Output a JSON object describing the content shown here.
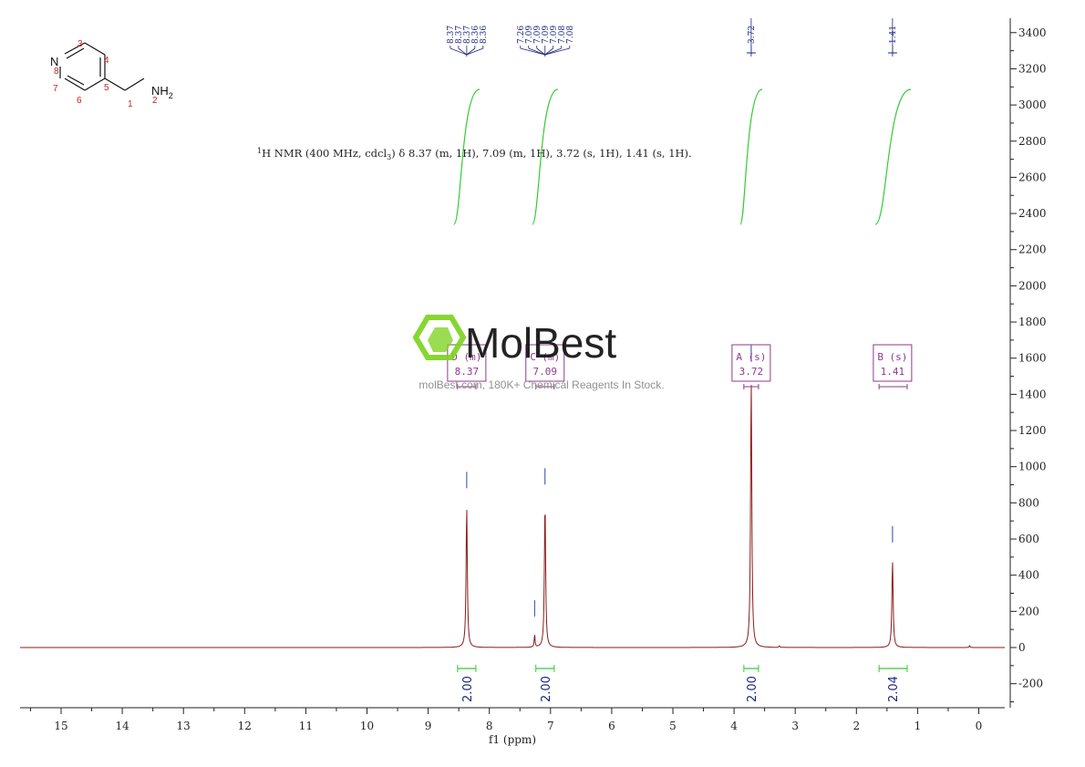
{
  "chart_data": {
    "type": "line",
    "xlabel": "f1 (ppm)",
    "ylabel": "",
    "xlim": [
      15.7,
      -0.5
    ],
    "ylim": [
      -340,
      3480
    ],
    "x_ticks": [
      15,
      14,
      13,
      12,
      11,
      10,
      9,
      8,
      7,
      6,
      5,
      4,
      3,
      2,
      1,
      0
    ],
    "y_ticks": [
      3400,
      3200,
      3000,
      2800,
      2600,
      2400,
      2200,
      2000,
      1800,
      1600,
      1400,
      1200,
      1000,
      800,
      600,
      400,
      200,
      0,
      -200
    ],
    "peaks": [
      {
        "x": 8.37,
        "y": 780
      },
      {
        "x": 7.26,
        "y": 70
      },
      {
        "x": 7.09,
        "y": 800
      },
      {
        "x": 3.72,
        "y": 1480
      },
      {
        "x": 3.26,
        "y": 10
      },
      {
        "x": 1.41,
        "y": 480
      },
      {
        "x": 0.15,
        "y": 10
      }
    ],
    "peak_labels": [
      {
        "group_x": 8.37,
        "labels": [
          "8.37",
          "8.37",
          "8.37",
          "8.36",
          "8.36"
        ]
      },
      {
        "group_x": 7.09,
        "labels": [
          "7.26",
          "7.09",
          "7.09",
          "7.09",
          "7.09",
          "7.08",
          "7.08"
        ]
      },
      {
        "group_x": 3.72,
        "labels": [
          "3.72"
        ]
      },
      {
        "group_x": 1.41,
        "labels": [
          "1.41"
        ]
      }
    ],
    "integrations": [
      {
        "x": 8.37,
        "from": 8.52,
        "to": 8.22,
        "value": "2.00"
      },
      {
        "x": 7.09,
        "from": 7.24,
        "to": 6.94,
        "value": "2.00"
      },
      {
        "x": 3.72,
        "from": 3.84,
        "to": 3.6,
        "value": "2.00"
      },
      {
        "x": 1.41,
        "from": 1.63,
        "to": 1.17,
        "value": "2.04"
      }
    ],
    "multiplets": [
      {
        "x": 8.37,
        "letter": "D",
        "kind": "(m)",
        "shift": "8.37"
      },
      {
        "x": 7.09,
        "letter": "C",
        "kind": "(m)",
        "shift": "7.09"
      },
      {
        "x": 3.72,
        "letter": "A",
        "kind": "(s)",
        "shift": "3.72"
      },
      {
        "x": 1.41,
        "letter": "B",
        "kind": "(s)",
        "shift": "1.41"
      }
    ]
  },
  "nmr_summary": {
    "sup": "1",
    "text_a": "H NMR (400 MHz, cdcl",
    "sub": "3",
    "text_b": ") δ 8.37 (m, 1H), 7.09 (m, 1H), 3.72 (s, 1H), 1.41 (s, 1H)."
  },
  "molecule": {
    "atoms": {
      "N": "N",
      "NH2": "NH",
      "H2sub": "2"
    },
    "numbers": [
      "1",
      "2",
      "3",
      "4",
      "5",
      "6",
      "7",
      "8"
    ]
  },
  "watermark": {
    "brand": "MolBest",
    "tagline": "molBest.com, 180K+ Chemical Reagents In Stock."
  },
  "colors": {
    "spectrum": "#8b1a1a",
    "integral": "#33cc33",
    "peak_label": "#1a237e",
    "multiplet": "#8e3a8e",
    "brand_green": "#7ed321"
  }
}
